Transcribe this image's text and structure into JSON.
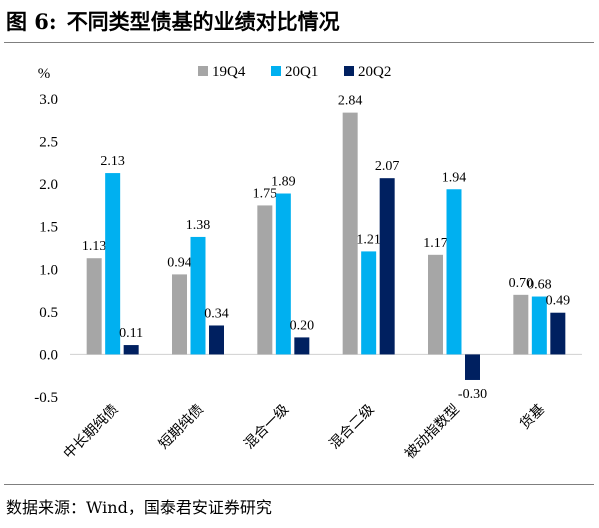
{
  "figure": {
    "label": "图 6:",
    "title": "不同类型债基的业绩对比情况",
    "source": "数据来源：Wind，国泰君安证券研究"
  },
  "colors": {
    "19Q4": "#a6a6a6",
    "20Q1": "#00b0f0",
    "20Q2": "#002060"
  },
  "chart_data": {
    "type": "bar",
    "title": "",
    "ylabel": "%",
    "xlabel": "",
    "ylim": [
      -0.5,
      3.0
    ],
    "yticks": [
      "-0.5",
      "0.0",
      "0.5",
      "1.0",
      "1.5",
      "2.0",
      "2.5",
      "3.0"
    ],
    "ytick_values": [
      -0.5,
      0.0,
      0.5,
      1.0,
      1.5,
      2.0,
      2.5,
      3.0
    ],
    "grid": false,
    "legend_position": "top",
    "categories": [
      "中长期纯债",
      "短期纯债",
      "混合一级",
      "混合二级",
      "被动指数型",
      "货基"
    ],
    "series": [
      {
        "name": "19Q4",
        "values": [
          1.13,
          0.94,
          1.75,
          2.84,
          1.17,
          0.7
        ],
        "labels": [
          "1.13",
          "0.94",
          "1.75",
          "2.84",
          "1.17",
          "0.70"
        ]
      },
      {
        "name": "20Q1",
        "values": [
          2.13,
          1.38,
          1.89,
          1.21,
          1.94,
          0.68
        ],
        "labels": [
          "2.13",
          "1.38",
          "1.89",
          "1.21",
          "1.94",
          "0.68"
        ]
      },
      {
        "name": "20Q2",
        "values": [
          0.11,
          0.34,
          0.2,
          2.07,
          -0.3,
          0.49
        ],
        "labels": [
          "0.11",
          "0.34",
          "0.20",
          "2.07",
          "-0.30",
          "0.49"
        ]
      }
    ]
  }
}
